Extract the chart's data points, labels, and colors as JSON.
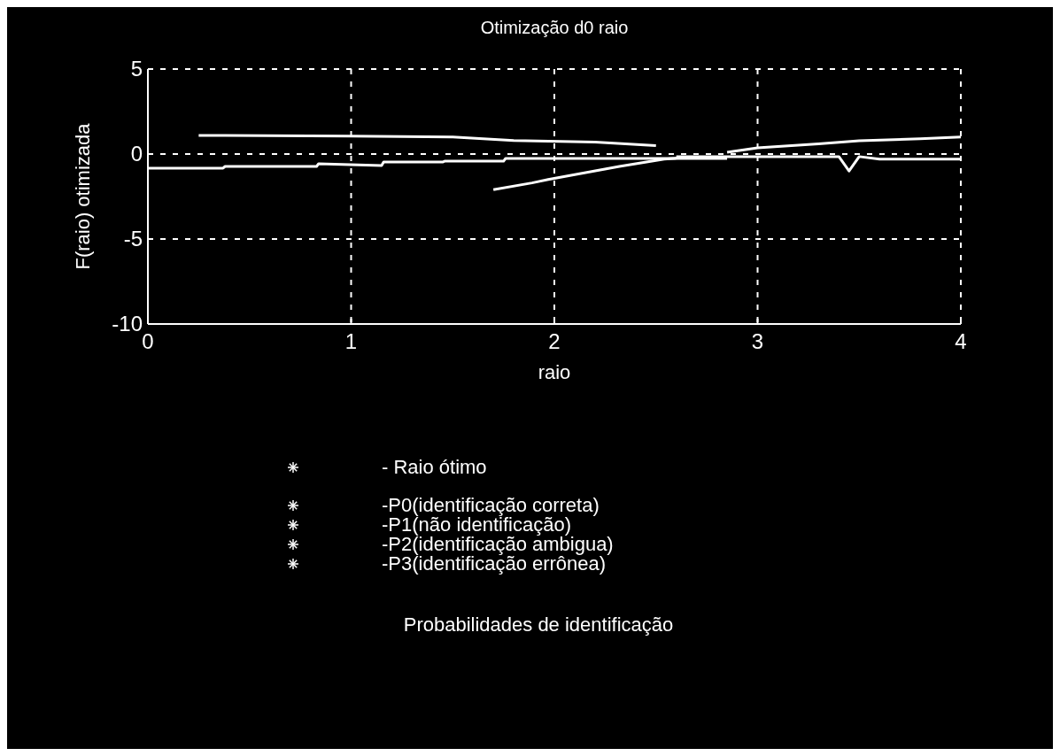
{
  "chart_data": {
    "type": "line",
    "title": "Otimização d0 raio",
    "xlabel": "raio",
    "ylabel": "F(raio) otimizada",
    "xlim": [
      0,
      4
    ],
    "ylim": [
      -10,
      5
    ],
    "xticks": [
      0,
      1,
      2,
      3,
      4
    ],
    "yticks": [
      5,
      0,
      -5,
      -10
    ],
    "grid": true,
    "series": [
      {
        "color": "#ffffff",
        "x": [
          0.25,
          1.0,
          1.5,
          1.8,
          2.2,
          2.5
        ],
        "values": [
          1.1,
          1.05,
          1.0,
          0.8,
          0.7,
          0.5
        ]
      },
      {
        "color": "#ffffff",
        "x": [
          0,
          0.37,
          0.38,
          0.83,
          0.84,
          1.15,
          1.16,
          1.45,
          1.46,
          1.75,
          1.76,
          2.85
        ],
        "values": [
          -0.83,
          -0.83,
          -0.73,
          -0.73,
          -0.57,
          -0.68,
          -0.47,
          -0.47,
          -0.42,
          -0.42,
          -0.26,
          -0.26
        ]
      },
      {
        "color": "#ffffff",
        "x": [
          1.7,
          1.89,
          1.97,
          2.32,
          2.54,
          2.65
        ],
        "values": [
          -2.1,
          -1.7,
          -1.5,
          -0.73,
          -0.3,
          -0.2
        ]
      },
      {
        "color": "#ffffff",
        "x": [
          2.6,
          3.0,
          3.4,
          3.45,
          3.5,
          3.6,
          4.0
        ],
        "values": [
          -0.15,
          -0.15,
          -0.15,
          -1.0,
          -0.15,
          -0.3,
          -0.3
        ]
      },
      {
        "color": "#ffffff",
        "x": [
          2.85,
          3.0,
          3.3,
          3.5,
          3.8,
          4.0
        ],
        "values": [
          0.1,
          0.36,
          0.6,
          0.78,
          0.9,
          1.0
        ]
      }
    ],
    "annotations": [
      "- Raio ótimo",
      "-P0(identificação correta)",
      "-P1(não identificação)",
      "-P2(identificação ambigua)",
      "-P3(identificação errônea)",
      "Probabilidades de identificação"
    ]
  }
}
